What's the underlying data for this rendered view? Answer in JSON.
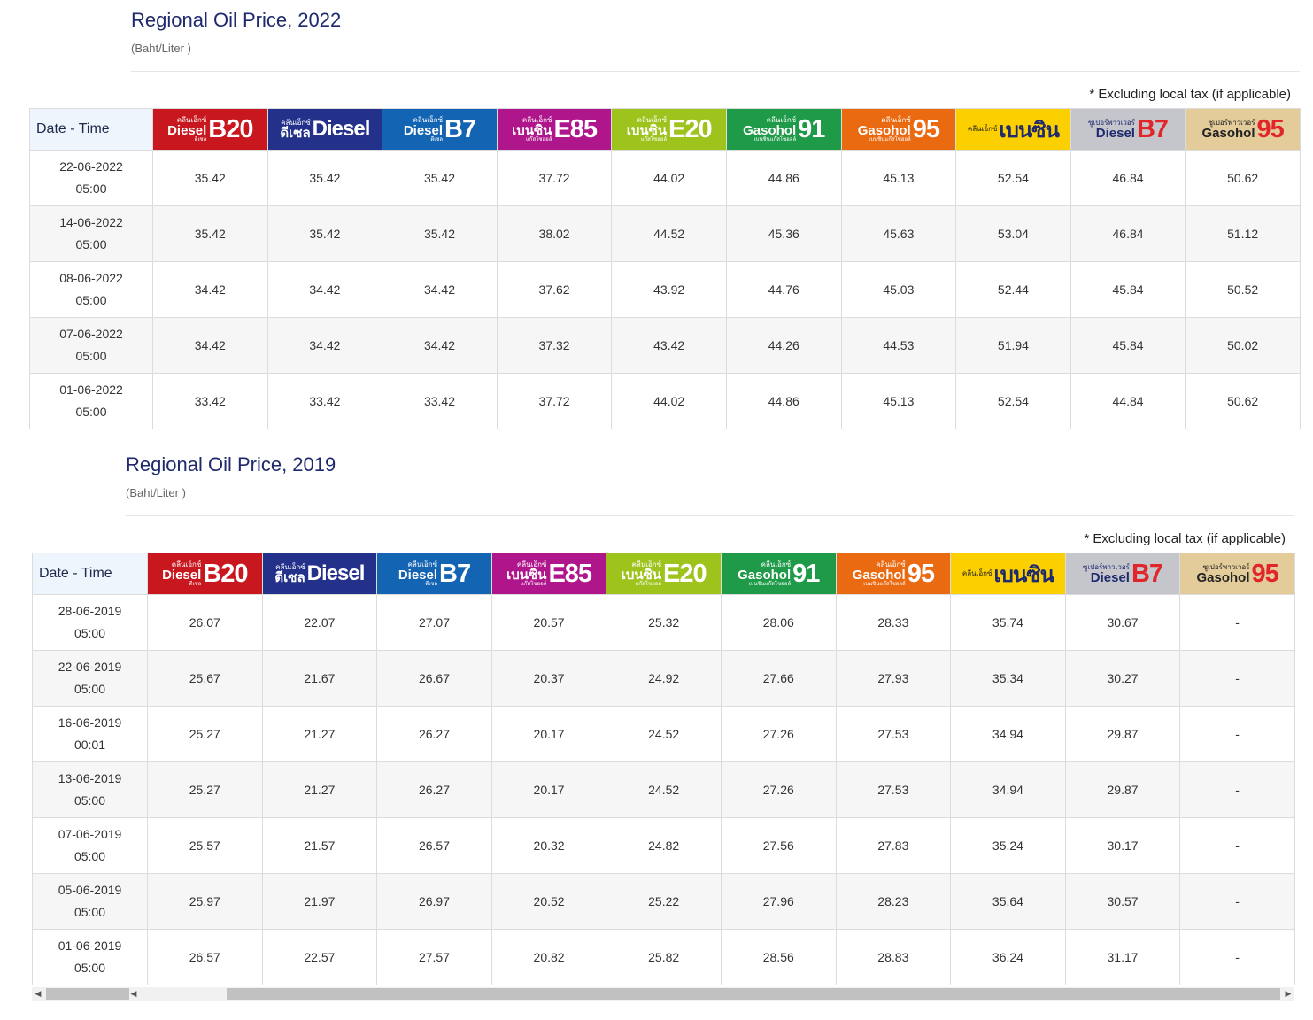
{
  "products": [
    {
      "small": "คลีนเอ็กซ์",
      "word": "Diesel",
      "sub": "ดีเซล",
      "big": "B20",
      "bg": "#c8171e",
      "fg": "#ffffff",
      "bigColor": "#ffffff"
    },
    {
      "small": "คลีนเอ็กซ์",
      "word": "ดีเซล",
      "sub": "",
      "big": "Diesel",
      "bg": "#24318a",
      "fg": "#ffffff",
      "bigColor": "#ffffff"
    },
    {
      "small": "คลีนเอ็กซ์",
      "word": "Diesel",
      "sub": "ดีเซล",
      "big": "B7",
      "bg": "#1464b4",
      "fg": "#ffffff",
      "bigColor": "#ffffff"
    },
    {
      "small": "คลีนเอ็กซ์",
      "word": "เบนซิน",
      "sub": "แก๊สโซฮอล์",
      "big": "E85",
      "bg": "#b0168c",
      "fg": "#ffffff",
      "bigColor": "#ffffff"
    },
    {
      "small": "คลีนเอ็กซ์",
      "word": "เบนซิน",
      "sub": "แก๊สโซฮอล์",
      "big": "E20",
      "bg": "#9ec31c",
      "fg": "#ffffff",
      "bigColor": "#ffffff"
    },
    {
      "small": "คลีนเอ็กซ์",
      "word": "Gasohol",
      "sub": "เบนซินแก๊สโซฮอล์",
      "big": "91",
      "bg": "#1e9a48",
      "fg": "#ffffff",
      "bigColor": "#ffffff"
    },
    {
      "small": "คลีนเอ็กซ์",
      "word": "Gasohol",
      "sub": "เบนซินแก๊สโซฮอล์",
      "big": "95",
      "bg": "#ea6a12",
      "fg": "#ffffff",
      "bigColor": "#ffffff"
    },
    {
      "small": "คลีนเอ็กซ์",
      "word": "",
      "sub": "",
      "big": "เบนซิน",
      "bg": "#fcd000",
      "fg": "#222222",
      "bigColor": "#1f2a6e"
    },
    {
      "small": "ซูเปอร์พาวเวอร์",
      "word": "Diesel",
      "sub": "",
      "big": "B7",
      "bg": "#c4c6cc",
      "fg": "#1f2a6e",
      "bigColor": "#e0262b"
    },
    {
      "small": "ซูเปอร์พาวเวอร์",
      "word": "Gasohol",
      "sub": "",
      "big": "95",
      "bg": "#e3cc9a",
      "fg": "#222222",
      "bigColor": "#e0262b"
    }
  ],
  "tables": [
    {
      "title": "Regional Oil Price, 2022",
      "unit": "(Baht/Liter )",
      "note": "* Excluding local tax (if applicable)",
      "date_header": "Date - Time",
      "rows": [
        {
          "date": "22-06-2022",
          "time": "05:00",
          "values": [
            "35.42",
            "35.42",
            "35.42",
            "37.72",
            "44.02",
            "44.86",
            "45.13",
            "52.54",
            "46.84",
            "50.62"
          ]
        },
        {
          "date": "14-06-2022",
          "time": "05:00",
          "values": [
            "35.42",
            "35.42",
            "35.42",
            "38.02",
            "44.52",
            "45.36",
            "45.63",
            "53.04",
            "46.84",
            "51.12"
          ]
        },
        {
          "date": "08-06-2022",
          "time": "05:00",
          "values": [
            "34.42",
            "34.42",
            "34.42",
            "37.62",
            "43.92",
            "44.76",
            "45.03",
            "52.44",
            "45.84",
            "50.52"
          ]
        },
        {
          "date": "07-06-2022",
          "time": "05:00",
          "values": [
            "34.42",
            "34.42",
            "34.42",
            "37.32",
            "43.42",
            "44.26",
            "44.53",
            "51.94",
            "45.84",
            "50.02"
          ]
        },
        {
          "date": "01-06-2022",
          "time": "05:00",
          "values": [
            "33.42",
            "33.42",
            "33.42",
            "37.72",
            "44.02",
            "44.86",
            "45.13",
            "52.54",
            "44.84",
            "50.62"
          ]
        }
      ]
    },
    {
      "title": "Regional Oil Price, 2019",
      "unit": "(Baht/Liter )",
      "note": "* Excluding local tax (if applicable)",
      "date_header": "Date - Time",
      "rows": [
        {
          "date": "28-06-2019",
          "time": "05:00",
          "values": [
            "26.07",
            "22.07",
            "27.07",
            "20.57",
            "25.32",
            "28.06",
            "28.33",
            "35.74",
            "30.67",
            "-"
          ]
        },
        {
          "date": "22-06-2019",
          "time": "05:00",
          "values": [
            "25.67",
            "21.67",
            "26.67",
            "20.37",
            "24.92",
            "27.66",
            "27.93",
            "35.34",
            "30.27",
            "-"
          ]
        },
        {
          "date": "16-06-2019",
          "time": "00:01",
          "values": [
            "25.27",
            "21.27",
            "26.27",
            "20.17",
            "24.52",
            "27.26",
            "27.53",
            "34.94",
            "29.87",
            "-"
          ]
        },
        {
          "date": "13-06-2019",
          "time": "05:00",
          "values": [
            "25.27",
            "21.27",
            "26.27",
            "20.17",
            "24.52",
            "27.26",
            "27.53",
            "34.94",
            "29.87",
            "-"
          ]
        },
        {
          "date": "07-06-2019",
          "time": "05:00",
          "values": [
            "25.57",
            "21.57",
            "26.57",
            "20.32",
            "24.82",
            "27.56",
            "27.83",
            "35.24",
            "30.17",
            "-"
          ]
        },
        {
          "date": "05-06-2019",
          "time": "05:00",
          "values": [
            "25.97",
            "21.97",
            "26.97",
            "20.52",
            "25.22",
            "27.96",
            "28.23",
            "35.64",
            "30.57",
            "-"
          ]
        },
        {
          "date": "01-06-2019",
          "time": "05:00",
          "values": [
            "26.57",
            "22.57",
            "27.57",
            "20.82",
            "25.82",
            "28.56",
            "28.83",
            "36.24",
            "31.17",
            "-"
          ]
        }
      ]
    }
  ]
}
